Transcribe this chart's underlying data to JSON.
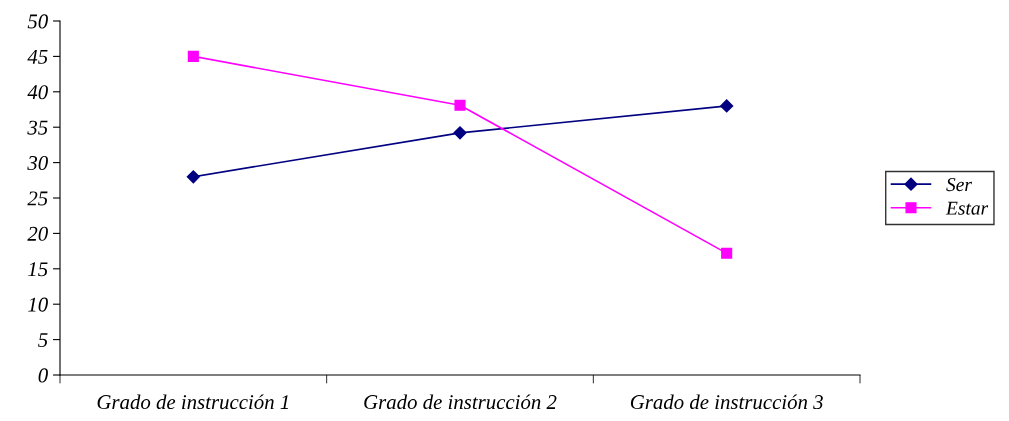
{
  "chart_data": {
    "type": "line",
    "categories": [
      "Grado de instrucción 1",
      "Grado de instrucción 2",
      "Grado de instrucción 3"
    ],
    "series": [
      {
        "name": "Ser",
        "color": "#000080",
        "marker": "diamond",
        "values": [
          28,
          34.2,
          38
        ]
      },
      {
        "name": "Estar",
        "color": "#ff00ff",
        "marker": "square",
        "values": [
          45,
          38.1,
          17.2
        ]
      }
    ],
    "ylim": [
      0,
      50
    ],
    "yticks": [
      0,
      5,
      10,
      15,
      20,
      25,
      30,
      35,
      40,
      45,
      50
    ],
    "grid": false,
    "legend": "right",
    "line_style": "solid"
  }
}
